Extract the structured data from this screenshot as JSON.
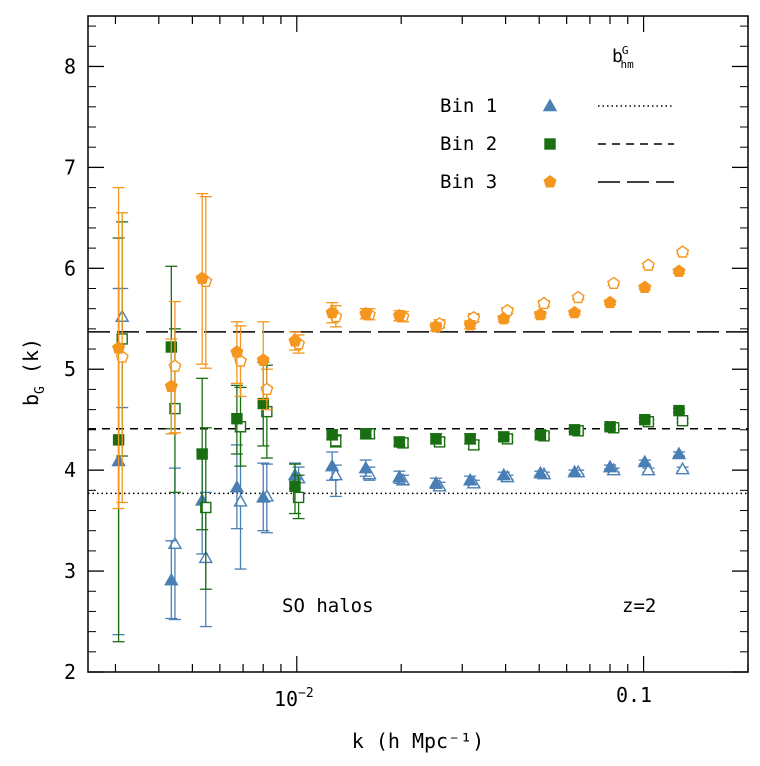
{
  "chart_data": {
    "type": "scatter",
    "xlabel": "k (h Mpc⁻¹)",
    "ylabel": "b",
    "ylabel_sub": "G",
    "ylabel_tail": " (k)",
    "x_scale": "log",
    "xlim": [
      0.0025,
      0.2
    ],
    "ylim": [
      2,
      8.5
    ],
    "y_ticks": [
      2,
      3,
      4,
      5,
      6,
      7,
      8
    ],
    "y_tick_labels": [
      "2",
      "3",
      "4",
      "5",
      "6",
      "7",
      "8"
    ],
    "x_major_ticks": [
      0.01,
      0.1
    ],
    "x_tick_label_base": "10",
    "x_tick_label_exp": "−2",
    "x_tick_label_01": "0.1",
    "annotations": {
      "halos": "SO halos",
      "redshift": "z=2"
    },
    "legend": {
      "placement": "top-right",
      "header": "b",
      "header_sup": "G",
      "header_sub": "hm",
      "entries": [
        "Bin 1",
        "Bin 2",
        "Bin 3"
      ]
    },
    "colors": {
      "bin1": "#4a7fb5",
      "bin2": "#1a6e12",
      "bin3": "#f5961e"
    },
    "reference_lines": [
      {
        "name": "Bin 1",
        "y": 3.77,
        "style": "dotted"
      },
      {
        "name": "Bin 2",
        "y": 4.41,
        "style": "short-dash"
      },
      {
        "name": "Bin 3",
        "y": 5.37,
        "style": "long-dash"
      }
    ],
    "series": [
      {
        "name": "Bin 1",
        "marker": "triangle",
        "color": "#4a7fb5",
        "filled": [
          {
            "x": 0.0031,
            "y": 4.09,
            "lo": 2.37,
            "hi": 5.8
          },
          {
            "x": 0.0044,
            "y": 2.91,
            "lo": 2.53,
            "hi": 3.3
          },
          {
            "x": 0.0054,
            "y": 3.7,
            "lo": 3.17,
            "hi": 4.2
          },
          {
            "x": 0.0068,
            "y": 3.83,
            "lo": 3.42,
            "hi": 4.25
          },
          {
            "x": 0.0081,
            "y": 3.73,
            "lo": 3.4,
            "hi": 4.07
          },
          {
            "x": 0.01,
            "y": 3.95,
            "lo": 3.82,
            "hi": 4.07
          },
          {
            "x": 0.0128,
            "y": 4.04,
            "lo": 3.9,
            "hi": 4.18
          },
          {
            "x": 0.016,
            "y": 4.02,
            "lo": 3.94,
            "hi": 4.1
          },
          {
            "x": 0.02,
            "y": 3.93,
            "lo": 3.87,
            "hi": 3.99
          },
          {
            "x": 0.0255,
            "y": 3.87,
            "lo": 3.82,
            "hi": 3.92
          },
          {
            "x": 0.032,
            "y": 3.9,
            "lo": 3.86,
            "hi": 3.94
          },
          {
            "x": 0.04,
            "y": 3.95,
            "lo": 3.92,
            "hi": 3.98
          },
          {
            "x": 0.051,
            "y": 3.97,
            "lo": 3.95,
            "hi": 3.99
          },
          {
            "x": 0.064,
            "y": 3.98,
            "lo": 3.96,
            "hi": 4.0
          },
          {
            "x": 0.081,
            "y": 4.03,
            "lo": 4.01,
            "hi": 4.05
          },
          {
            "x": 0.102,
            "y": 4.08,
            "lo": 4.06,
            "hi": 4.1
          },
          {
            "x": 0.128,
            "y": 4.16,
            "lo": 4.14,
            "hi": 4.18
          }
        ],
        "open": [
          {
            "x": 0.0031,
            "y": 5.52,
            "lo": 4.62,
            "hi": 5.8
          },
          {
            "x": 0.0044,
            "y": 3.27,
            "lo": 2.52,
            "hi": 4.02
          },
          {
            "x": 0.0054,
            "y": 3.13,
            "lo": 2.45,
            "hi": 3.78
          },
          {
            "x": 0.0068,
            "y": 3.69,
            "lo": 3.02,
            "hi": 4.38
          },
          {
            "x": 0.0081,
            "y": 3.74,
            "lo": 3.38,
            "hi": 4.06
          },
          {
            "x": 0.01,
            "y": 3.92,
            "lo": 3.72,
            "hi": 4.03
          },
          {
            "x": 0.0128,
            "y": 3.95,
            "lo": 3.74,
            "hi": 4.05
          },
          {
            "x": 0.016,
            "y": 3.96,
            "lo": 3.9,
            "hi": 4.03
          },
          {
            "x": 0.02,
            "y": 3.9,
            "lo": 3.86,
            "hi": 3.95
          },
          {
            "x": 0.0255,
            "y": 3.84,
            "lo": 3.81,
            "hi": 3.88
          },
          {
            "x": 0.032,
            "y": 3.87,
            "lo": 3.84,
            "hi": 3.9
          },
          {
            "x": 0.04,
            "y": 3.93,
            "lo": 3.91,
            "hi": 3.95
          },
          {
            "x": 0.051,
            "y": 3.96,
            "lo": 3.94,
            "hi": 3.98
          },
          {
            "x": 0.064,
            "y": 3.98,
            "lo": 3.96,
            "hi": 4.0
          },
          {
            "x": 0.081,
            "y": 4.0,
            "lo": 3.98,
            "hi": 4.02
          },
          {
            "x": 0.102,
            "y": 4.0,
            "lo": 3.98,
            "hi": 4.02
          },
          {
            "x": 0.128,
            "y": 4.01,
            "lo": 3.99,
            "hi": 4.03
          }
        ]
      },
      {
        "name": "Bin 2",
        "marker": "square",
        "color": "#1a6e12",
        "filled": [
          {
            "x": 0.0031,
            "y": 4.3,
            "lo": 2.3,
            "hi": 6.3
          },
          {
            "x": 0.0044,
            "y": 5.22,
            "lo": 4.41,
            "hi": 6.02
          },
          {
            "x": 0.0054,
            "y": 4.16,
            "lo": 3.41,
            "hi": 4.91
          },
          {
            "x": 0.0068,
            "y": 4.51,
            "lo": 4.16,
            "hi": 4.84
          },
          {
            "x": 0.0081,
            "y": 4.66,
            "lo": 4.24,
            "hi": 5.07
          },
          {
            "x": 0.01,
            "y": 3.84,
            "lo": 3.57,
            "hi": 4.06
          },
          {
            "x": 0.0128,
            "y": 4.35,
            "lo": 4.3,
            "hi": 4.4
          },
          {
            "x": 0.016,
            "y": 4.36,
            "lo": 4.31,
            "hi": 4.4
          },
          {
            "x": 0.02,
            "y": 4.28,
            "lo": 4.24,
            "hi": 4.32
          },
          {
            "x": 0.0255,
            "y": 4.31,
            "lo": 4.26,
            "hi": 4.36
          },
          {
            "x": 0.032,
            "y": 4.31,
            "lo": 4.26,
            "hi": 4.36
          },
          {
            "x": 0.04,
            "y": 4.33,
            "lo": 4.3,
            "hi": 4.36
          },
          {
            "x": 0.051,
            "y": 4.35,
            "lo": 4.32,
            "hi": 4.38
          },
          {
            "x": 0.064,
            "y": 4.4,
            "lo": 4.38,
            "hi": 4.42
          },
          {
            "x": 0.081,
            "y": 4.43,
            "lo": 4.41,
            "hi": 4.45
          },
          {
            "x": 0.102,
            "y": 4.5,
            "lo": 4.48,
            "hi": 4.52
          },
          {
            "x": 0.128,
            "y": 4.59,
            "lo": 4.57,
            "hi": 4.61
          }
        ],
        "open": [
          {
            "x": 0.0031,
            "y": 5.3,
            "lo": 4.14,
            "hi": 6.46
          },
          {
            "x": 0.0044,
            "y": 4.61,
            "lo": 3.78,
            "hi": 5.4
          },
          {
            "x": 0.0054,
            "y": 3.63,
            "lo": 2.82,
            "hi": 4.42
          },
          {
            "x": 0.0068,
            "y": 4.43,
            "lo": 4.04,
            "hi": 4.82
          },
          {
            "x": 0.0081,
            "y": 4.58,
            "lo": 4.12,
            "hi": 5.04
          },
          {
            "x": 0.01,
            "y": 3.73,
            "lo": 3.52,
            "hi": 3.95
          },
          {
            "x": 0.0128,
            "y": 4.29,
            "lo": 4.23,
            "hi": 4.35
          },
          {
            "x": 0.016,
            "y": 4.36,
            "lo": 4.32,
            "hi": 4.4
          },
          {
            "x": 0.02,
            "y": 4.27,
            "lo": 4.23,
            "hi": 4.31
          },
          {
            "x": 0.0255,
            "y": 4.28,
            "lo": 4.24,
            "hi": 4.32
          },
          {
            "x": 0.032,
            "y": 4.25,
            "lo": 4.21,
            "hi": 4.29
          },
          {
            "x": 0.04,
            "y": 4.31,
            "lo": 4.28,
            "hi": 4.34
          },
          {
            "x": 0.051,
            "y": 4.34,
            "lo": 4.31,
            "hi": 4.37
          },
          {
            "x": 0.064,
            "y": 4.39,
            "lo": 4.37,
            "hi": 4.41
          },
          {
            "x": 0.081,
            "y": 4.42,
            "lo": 4.4,
            "hi": 4.44
          },
          {
            "x": 0.102,
            "y": 4.48,
            "lo": 4.46,
            "hi": 4.5
          },
          {
            "x": 0.128,
            "y": 4.49,
            "lo": 4.47,
            "hi": 4.51
          }
        ]
      },
      {
        "name": "Bin 3",
        "marker": "pentagon",
        "color": "#f5961e",
        "filled": [
          {
            "x": 0.0031,
            "y": 5.21,
            "lo": 3.62,
            "hi": 6.8
          },
          {
            "x": 0.0044,
            "y": 4.83,
            "lo": 4.36,
            "hi": 5.3
          },
          {
            "x": 0.0054,
            "y": 5.9,
            "lo": 5.05,
            "hi": 6.74
          },
          {
            "x": 0.0068,
            "y": 5.17,
            "lo": 4.86,
            "hi": 5.47
          },
          {
            "x": 0.0081,
            "y": 5.09,
            "lo": 4.7,
            "hi": 5.47
          },
          {
            "x": 0.01,
            "y": 5.28,
            "lo": 5.19,
            "hi": 5.37
          },
          {
            "x": 0.0128,
            "y": 5.56,
            "lo": 5.46,
            "hi": 5.66
          },
          {
            "x": 0.016,
            "y": 5.55,
            "lo": 5.5,
            "hi": 5.6
          },
          {
            "x": 0.02,
            "y": 5.53,
            "lo": 5.48,
            "hi": 5.58
          },
          {
            "x": 0.0255,
            "y": 5.42,
            "lo": 5.38,
            "hi": 5.46
          },
          {
            "x": 0.032,
            "y": 5.44,
            "lo": 5.4,
            "hi": 5.48
          },
          {
            "x": 0.04,
            "y": 5.5,
            "lo": 5.47,
            "hi": 5.53
          },
          {
            "x": 0.051,
            "y": 5.54,
            "lo": 5.51,
            "hi": 5.57
          },
          {
            "x": 0.064,
            "y": 5.56,
            "lo": 5.54,
            "hi": 5.58
          },
          {
            "x": 0.081,
            "y": 5.66,
            "lo": 5.64,
            "hi": 5.68
          },
          {
            "x": 0.102,
            "y": 5.81,
            "lo": 5.79,
            "hi": 5.83
          },
          {
            "x": 0.128,
            "y": 5.97,
            "lo": 5.95,
            "hi": 5.99
          }
        ],
        "open": [
          {
            "x": 0.0031,
            "y": 5.12,
            "lo": 3.68,
            "hi": 6.55
          },
          {
            "x": 0.0044,
            "y": 5.03,
            "lo": 4.37,
            "hi": 5.67
          },
          {
            "x": 0.0054,
            "y": 5.87,
            "lo": 5.01,
            "hi": 6.71
          },
          {
            "x": 0.0068,
            "y": 5.08,
            "lo": 4.73,
            "hi": 5.43
          },
          {
            "x": 0.0081,
            "y": 4.8,
            "lo": 4.6,
            "hi": 5.0
          },
          {
            "x": 0.01,
            "y": 5.25,
            "lo": 5.16,
            "hi": 5.34
          },
          {
            "x": 0.0128,
            "y": 5.52,
            "lo": 5.42,
            "hi": 5.63
          },
          {
            "x": 0.016,
            "y": 5.54,
            "lo": 5.49,
            "hi": 5.6
          },
          {
            "x": 0.02,
            "y": 5.52,
            "lo": 5.47,
            "hi": 5.57
          },
          {
            "x": 0.0255,
            "y": 5.45,
            "lo": 5.41,
            "hi": 5.49
          },
          {
            "x": 0.032,
            "y": 5.51,
            "lo": 5.47,
            "hi": 5.55
          },
          {
            "x": 0.04,
            "y": 5.58,
            "lo": 5.55,
            "hi": 5.61
          },
          {
            "x": 0.051,
            "y": 5.65,
            "lo": 5.62,
            "hi": 5.68
          },
          {
            "x": 0.064,
            "y": 5.71,
            "lo": 5.69,
            "hi": 5.73
          },
          {
            "x": 0.081,
            "y": 5.85,
            "lo": 5.83,
            "hi": 5.87
          },
          {
            "x": 0.102,
            "y": 6.03,
            "lo": 6.01,
            "hi": 6.05
          },
          {
            "x": 0.128,
            "y": 6.16,
            "lo": 6.14,
            "hi": 6.18
          }
        ]
      }
    ]
  }
}
